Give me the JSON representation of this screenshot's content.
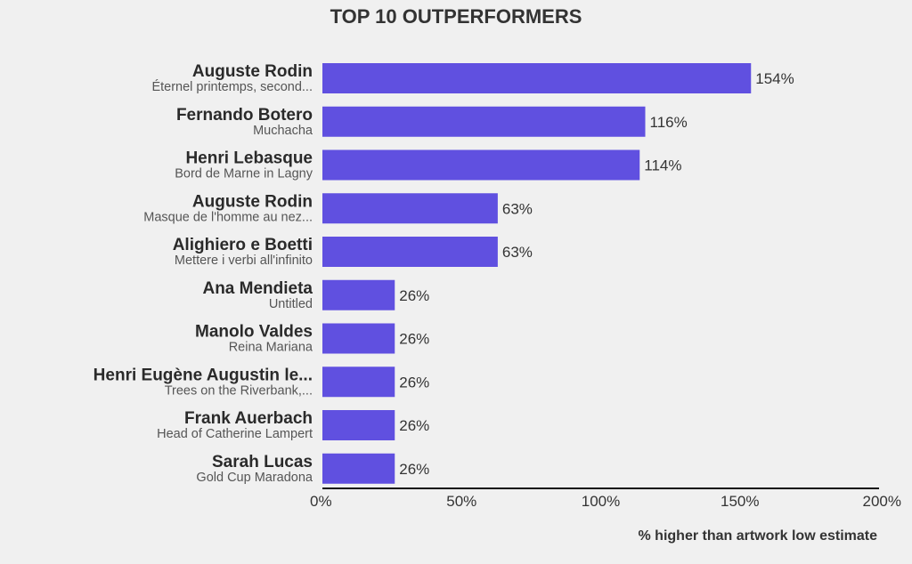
{
  "chart_data": {
    "type": "bar",
    "orientation": "horizontal",
    "title": "TOP 10 OUTPERFORMERS",
    "xlabel": "% higher than artwork low estimate",
    "xlim": [
      0,
      200
    ],
    "xticks": [
      "0%",
      "50%",
      "100%",
      "150%",
      "200%"
    ],
    "value_suffix": "%",
    "bar_color": "#6050e0",
    "items": [
      {
        "artist": "Auguste Rodin",
        "artwork": "Éternel printemps, second...",
        "value": 154
      },
      {
        "artist": "Fernando Botero",
        "artwork": "Muchacha",
        "value": 116
      },
      {
        "artist": "Henri Lebasque",
        "artwork": "Bord de Marne in Lagny",
        "value": 114
      },
      {
        "artist": "Auguste Rodin",
        "artwork": "Masque de l'homme au nez...",
        "value": 63
      },
      {
        "artist": "Alighiero e Boetti",
        "artwork": "Mettere i verbi all'infinito",
        "value": 63
      },
      {
        "artist": "Ana Mendieta",
        "artwork": "Untitled",
        "value": 26
      },
      {
        "artist": "Manolo Valdes",
        "artwork": "Reina Mariana",
        "value": 26
      },
      {
        "artist": "Henri Eugène Augustin le...",
        "artwork": "Trees on the Riverbank,...",
        "value": 26
      },
      {
        "artist": "Frank Auerbach",
        "artwork": "Head of Catherine Lampert",
        "value": 26
      },
      {
        "artist": "Sarah Lucas",
        "artwork": "Gold Cup Maradona",
        "value": 26
      }
    ]
  }
}
